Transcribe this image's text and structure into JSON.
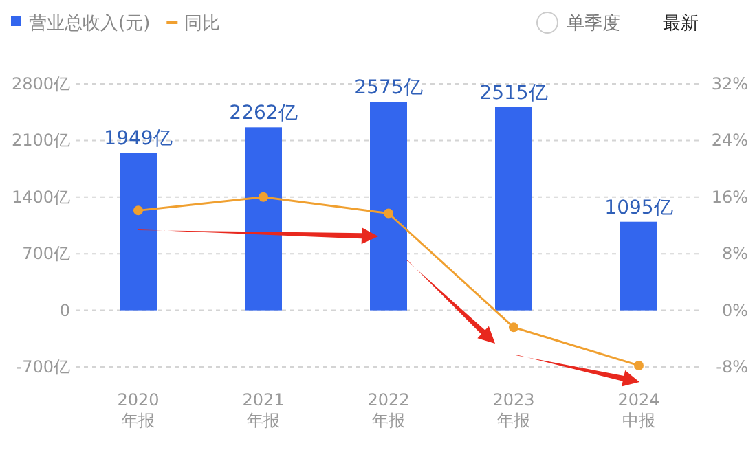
{
  "chart_data": {
    "type": "bar",
    "categories": [
      "2020 年报",
      "2021 年报",
      "2022 年报",
      "2023 年报",
      "2024 中报"
    ],
    "series": [
      {
        "name": "营业总收入(元)",
        "color": "#3366ee",
        "values": [
          1949,
          2262,
          2575,
          2515,
          1095
        ],
        "value_labels": [
          "1949亿",
          "2262亿",
          "2575亿",
          "2515亿",
          "1095亿"
        ]
      },
      {
        "name": "同比",
        "type": "line",
        "axis": "y2",
        "color": "#f0a030",
        "values": [
          14.1,
          16,
          13.7,
          -2.4,
          -7.8
        ]
      }
    ],
    "ylim": [
      -700,
      2800
    ],
    "yticks": [
      {
        "value": -700,
        "label": "-700亿"
      },
      0,
      {
        "value": 700,
        "label": "700亿"
      },
      {
        "value": 1400,
        "label": "1400亿"
      },
      {
        "value": 2100,
        "label": "2100亿"
      },
      {
        "value": 2800,
        "label": "2800亿"
      }
    ],
    "y2lim": [
      -8,
      32
    ],
    "y2ticks": [
      {
        "value": -8,
        "label": "-8%"
      },
      {
        "value": 0,
        "label": "0%"
      },
      {
        "value": 8,
        "label": "8%"
      },
      {
        "value": 16,
        "label": "16%"
      },
      {
        "value": 24,
        "label": "24%"
      },
      {
        "value": 32,
        "label": "32%"
      }
    ],
    "grid": "y",
    "legend": "top left",
    "marker": "circle",
    "annotations": [
      "单季度",
      "最新"
    ]
  }
}
